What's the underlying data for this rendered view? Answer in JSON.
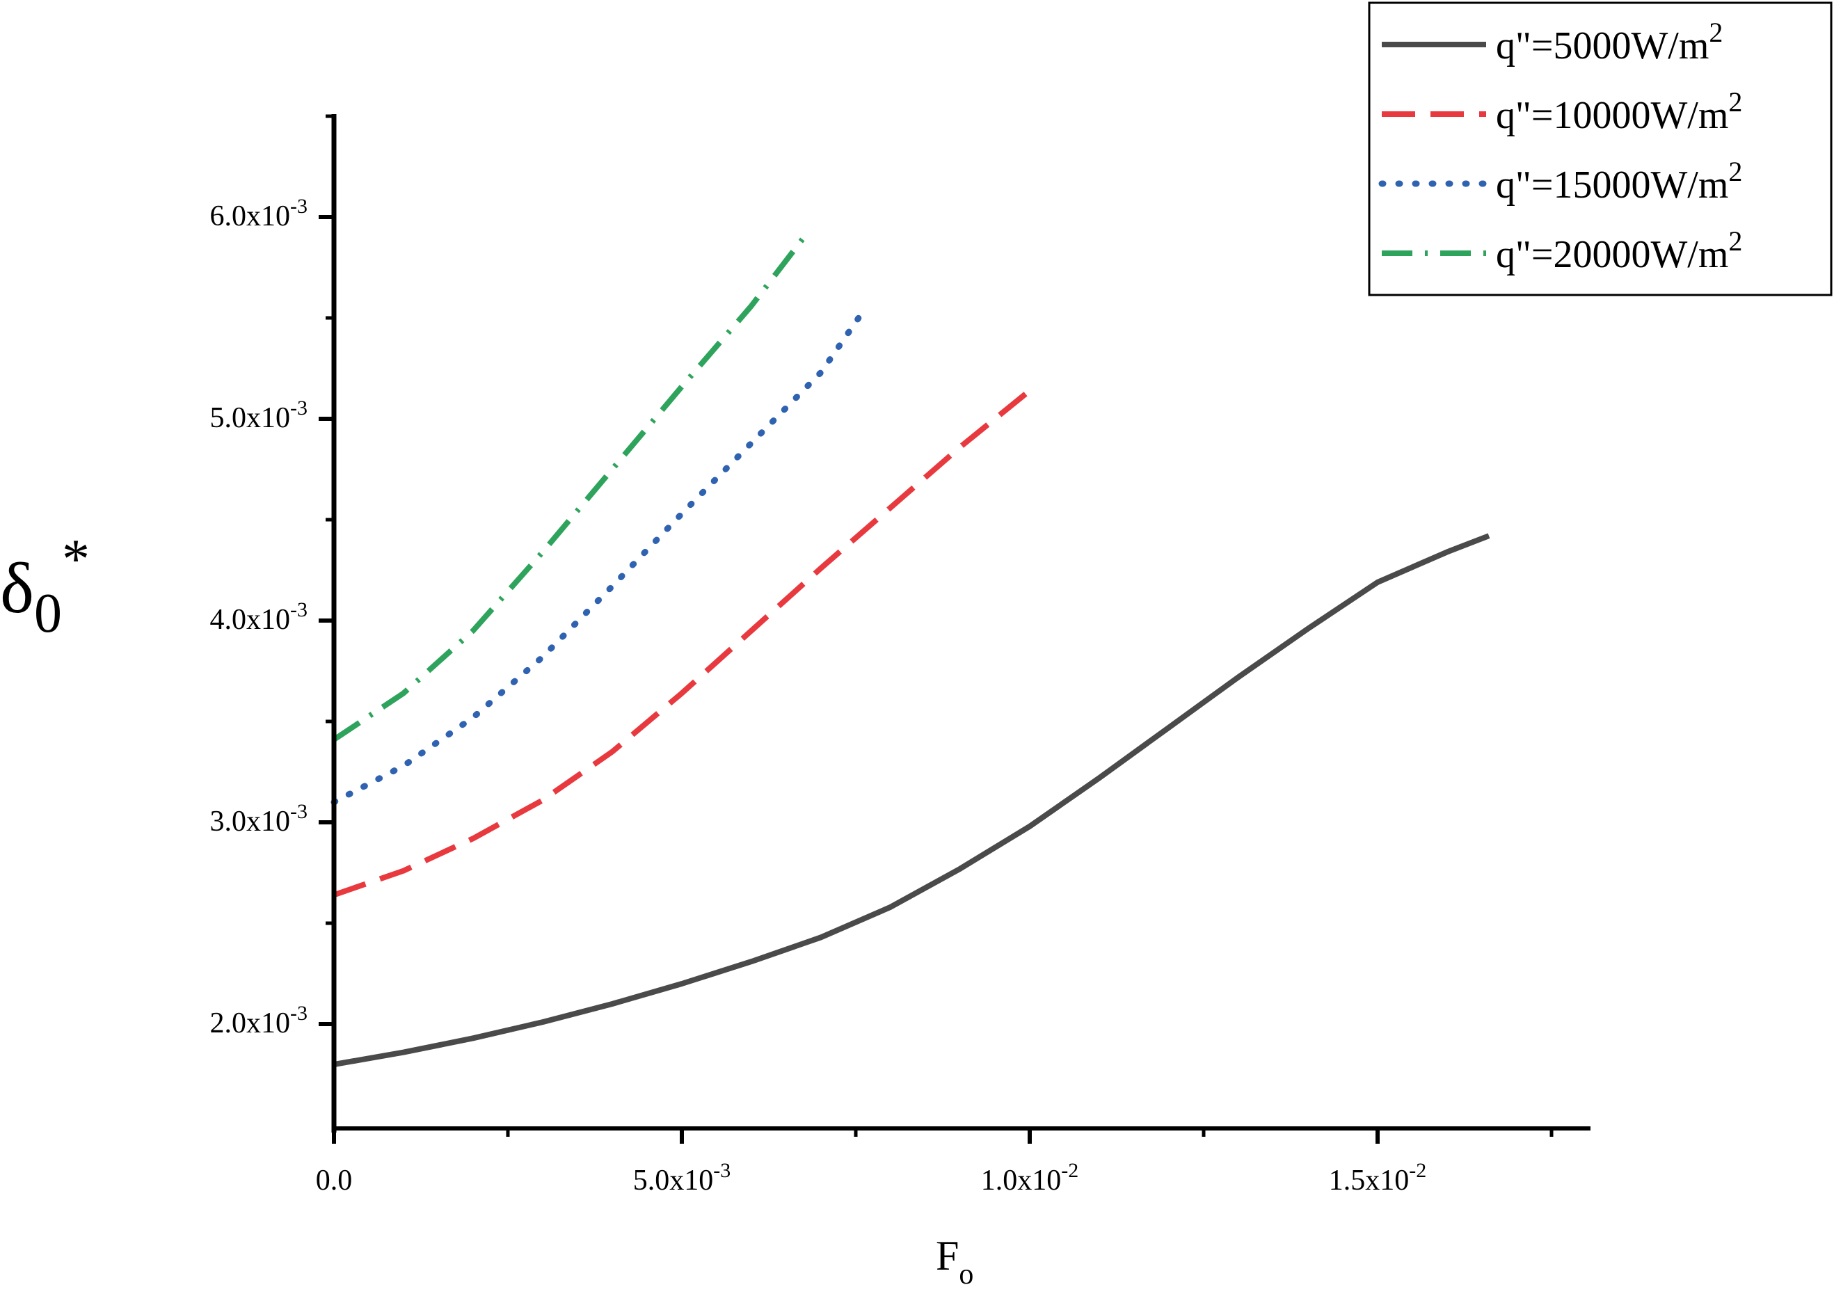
{
  "chart_data": {
    "type": "line",
    "title": "",
    "xlabel": {
      "main": "F",
      "sub": "o"
    },
    "ylabel": {
      "main": "δ",
      "sub": "0",
      "sup": "*"
    },
    "xlim": [
      0,
      0.0181
    ],
    "ylim": [
      0.0015,
      0.0065
    ],
    "grid": false,
    "legend_position": "top-right",
    "x_ticks": [
      {
        "value": 0.0,
        "mantissa": "0.0",
        "exponent": ""
      },
      {
        "value": 0.005,
        "mantissa": "5.0x10",
        "exponent": "-3"
      },
      {
        "value": 0.01,
        "mantissa": "1.0x10",
        "exponent": "-2"
      },
      {
        "value": 0.015,
        "mantissa": "1.5x10",
        "exponent": "-2"
      }
    ],
    "x_minor_ticks": [
      0.0025,
      0.0075,
      0.0125,
      0.0175
    ],
    "y_ticks": [
      {
        "value": 0.002,
        "mantissa": "2.0x10",
        "exponent": "-3"
      },
      {
        "value": 0.003,
        "mantissa": "3.0x10",
        "exponent": "-3"
      },
      {
        "value": 0.004,
        "mantissa": "4.0x10",
        "exponent": "-3"
      },
      {
        "value": 0.005,
        "mantissa": "5.0x10",
        "exponent": "-3"
      },
      {
        "value": 0.006,
        "mantissa": "6.0x10",
        "exponent": "-3"
      }
    ],
    "y_minor_ticks": [
      0.0025,
      0.0035,
      0.0045,
      0.0055,
      0.0065
    ],
    "series": [
      {
        "name": "q\"=5000W/m",
        "exponent": "2",
        "color": "#4a4a4a",
        "style": "solid",
        "x": [
          0,
          0.001,
          0.002,
          0.003,
          0.004,
          0.005,
          0.006,
          0.007,
          0.008,
          0.009,
          0.01,
          0.011,
          0.012,
          0.013,
          0.014,
          0.015,
          0.016,
          0.0166
        ],
        "y": [
          0.0018,
          0.00186,
          0.00193,
          0.00201,
          0.0021,
          0.0022,
          0.00231,
          0.00243,
          0.00258,
          0.00277,
          0.00298,
          0.00322,
          0.00347,
          0.00372,
          0.00396,
          0.00419,
          0.00434,
          0.00442
        ]
      },
      {
        "name": "q\"=10000W/m",
        "exponent": "2",
        "color": "#e8393f",
        "style": "dashed",
        "x": [
          0,
          0.001,
          0.002,
          0.003,
          0.004,
          0.005,
          0.006,
          0.007,
          0.008,
          0.009,
          0.01
        ],
        "y": [
          0.00264,
          0.00276,
          0.00292,
          0.00311,
          0.00335,
          0.00364,
          0.00395,
          0.00426,
          0.00456,
          0.00486,
          0.00514
        ]
      },
      {
        "name": "q\"=15000W/m",
        "exponent": "2",
        "color": "#2f62b0",
        "style": "dotted",
        "x": [
          0,
          0.001,
          0.002,
          0.003,
          0.004,
          0.005,
          0.006,
          0.007,
          0.0076
        ],
        "y": [
          0.0031,
          0.00328,
          0.00352,
          0.00382,
          0.00417,
          0.00453,
          0.00488,
          0.00523,
          0.00553
        ]
      },
      {
        "name": "q\"=20000W/m",
        "exponent": "2",
        "color": "#2ea35c",
        "style": "dashdot",
        "x": [
          0,
          0.001,
          0.002,
          0.003,
          0.004,
          0.005,
          0.006,
          0.0068
        ],
        "y": [
          0.00341,
          0.00364,
          0.00395,
          0.00434,
          0.00475,
          0.00516,
          0.00556,
          0.00592
        ]
      }
    ]
  }
}
